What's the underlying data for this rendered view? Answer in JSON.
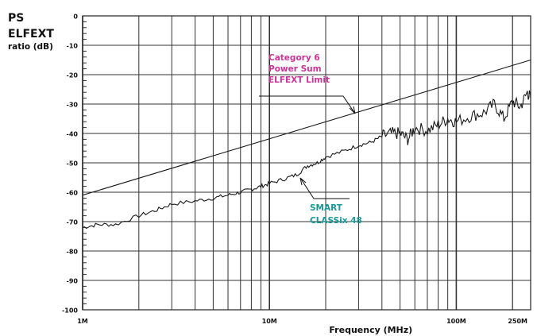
{
  "chart_data": {
    "type": "line",
    "ylabel_lines": [
      "PS",
      "ELFEXT",
      "ratio (dB)"
    ],
    "xlabel": "Frequency (MHz)",
    "xscale": "log",
    "xlim": [
      1,
      250
    ],
    "ylim": [
      -100,
      0
    ],
    "x_tick_labels": [
      {
        "x": 1,
        "label": "1M"
      },
      {
        "x": 10,
        "label": "10M"
      },
      {
        "x": 100,
        "label": "100M"
      },
      {
        "x": 250,
        "label": "250M"
      }
    ],
    "y_ticks": [
      0,
      -10,
      -20,
      -30,
      -40,
      -50,
      -60,
      -70,
      -80,
      -90,
      -100
    ],
    "grid": true,
    "series": [
      {
        "name": "Category 6 Power Sum ELFEXT Limit",
        "label_lines": [
          "Category 6",
          "Power Sum",
          "ELFEXT Limit"
        ],
        "color": "#cc3399",
        "x": [
          1,
          250
        ],
        "y": [
          -61,
          -15
        ]
      },
      {
        "name": "SMART CLASSix 48",
        "label_lines": [
          "SMART",
          "CLASSix 48"
        ],
        "color": "#1a9999",
        "x": [
          1,
          1.2,
          1.5,
          2,
          2.5,
          3,
          4,
          5,
          6,
          7,
          8,
          9,
          10,
          12,
          14,
          16,
          18,
          20,
          25,
          30,
          35,
          40,
          45,
          50,
          55,
          60,
          70,
          80,
          90,
          100,
          120,
          140,
          160,
          180,
          200,
          220,
          240,
          250
        ],
        "y": [
          -72,
          -71,
          -71,
          -68,
          -66,
          -64,
          -63,
          -62,
          -61,
          -60,
          -59,
          -58,
          -57,
          -55.5,
          -54,
          -51,
          -50,
          -48,
          -46,
          -44,
          -43,
          -41,
          -40,
          -40,
          -42,
          -38,
          -39,
          -37,
          -35,
          -36,
          -34,
          -33,
          -30,
          -35,
          -29,
          -31,
          -26,
          -28
        ]
      }
    ]
  }
}
